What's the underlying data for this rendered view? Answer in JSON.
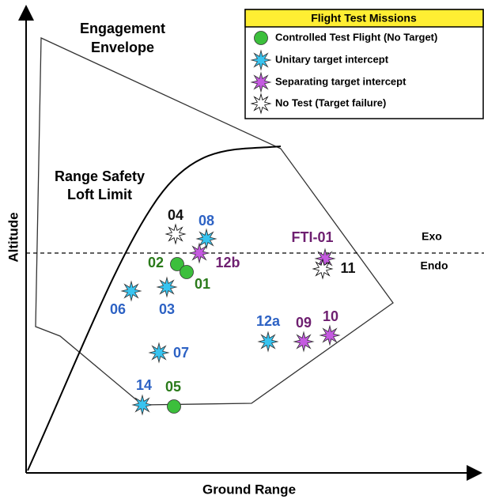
{
  "legend": {
    "title": "Flight Test Missions"
  },
  "axes": {
    "y": "Altitude",
    "x": "Ground Range"
  },
  "regions": {
    "envelope": [
      "Engagement",
      "Envelope"
    ],
    "loft": [
      "Range Safety",
      "Loft Limit"
    ]
  },
  "layers": [
    "Exo",
    "Endo"
  ],
  "missions": [
    {
      "name": "Controlled Test Flight (No Target)",
      "color": "#3cbf3c",
      "points": [
        "02",
        "01",
        "05"
      ]
    },
    {
      "name": "Unitary target intercept",
      "color": "#38c4f0",
      "points": [
        "08",
        "03",
        "06",
        "07",
        "14",
        "12a"
      ]
    },
    {
      "name": "Separating target intercept",
      "color": "#c45ae0",
      "points": [
        "12b",
        "09",
        "10",
        "FTI-01"
      ]
    },
    {
      "name": "No Test (Target failure)",
      "color": "#ffffff",
      "points": [
        "04",
        "11"
      ]
    }
  ]
}
